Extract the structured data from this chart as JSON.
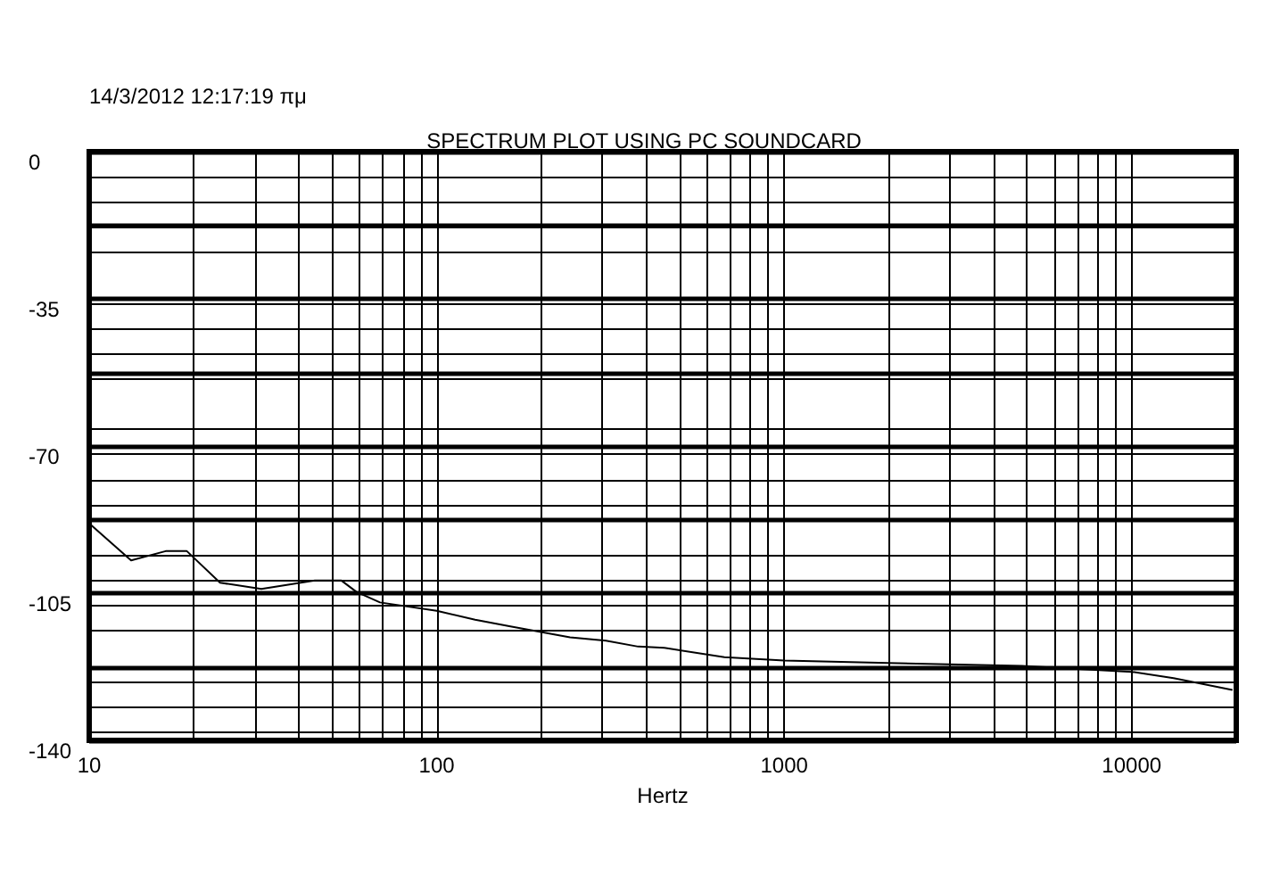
{
  "chart_data": {
    "type": "line",
    "title": "SPECTRUM PLOT USING PC SOUNDCARD",
    "xlabel": "Hertz",
    "annotations": [
      "14/3/2012 12:17:19 πμ"
    ],
    "log": "x",
    "grid": true,
    "marker": "none",
    "line_style": "solid",
    "color": "#000000",
    "x": [
      10,
      13.2,
      16.6,
      19.1,
      23.8,
      31.3,
      44.6,
      53.2,
      58.8,
      68.7,
      100,
      129,
      163,
      242,
      307,
      380,
      452,
      673,
      1000,
      1990,
      4830,
      10000,
      13200,
      19500
    ],
    "values": [
      -88.4,
      -97.2,
      -95,
      -95,
      -102.5,
      -104,
      -102,
      -102,
      -104.7,
      -107.2,
      -109.2,
      -111.3,
      -112.9,
      -115.5,
      -116.3,
      -117.7,
      -118,
      -120.2,
      -121,
      -121.6,
      -122.3,
      -123.7,
      -125.2,
      -128
    ],
    "xlim": [
      10,
      20000
    ],
    "ylim": [
      -140,
      0
    ],
    "xticks": [
      10,
      {
        "value": 20,
        "label": null
      },
      {
        "value": 30,
        "label": null
      },
      {
        "value": 40,
        "label": null
      },
      {
        "value": 50,
        "label": null
      },
      {
        "value": 60,
        "label": null
      },
      {
        "value": 70,
        "label": null
      },
      {
        "value": 80,
        "label": null
      },
      {
        "value": 90,
        "label": null
      },
      100,
      {
        "value": 200,
        "label": null
      },
      {
        "value": 300,
        "label": null
      },
      {
        "value": 400,
        "label": null
      },
      {
        "value": 500,
        "label": null
      },
      {
        "value": 600,
        "label": null
      },
      {
        "value": 700,
        "label": null
      },
      {
        "value": 800,
        "label": null
      },
      {
        "value": 900,
        "label": null
      },
      1000,
      {
        "value": 2000,
        "label": null
      },
      {
        "value": 3000,
        "label": null
      },
      {
        "value": 4000,
        "label": null
      },
      {
        "value": 5000,
        "label": null
      },
      {
        "value": 6000,
        "label": null
      },
      {
        "value": 7000,
        "label": null
      },
      {
        "value": 8000,
        "label": null
      },
      {
        "value": 9000,
        "label": null
      },
      10000
    ],
    "yticks": [
      0,
      {
        "value": -17.5,
        "label": null
      },
      -35,
      {
        "value": -52.5,
        "label": null
      },
      -70,
      {
        "value": -87.5,
        "label": null
      },
      -105,
      {
        "value": -122.5,
        "label": null
      },
      -140
    ]
  }
}
